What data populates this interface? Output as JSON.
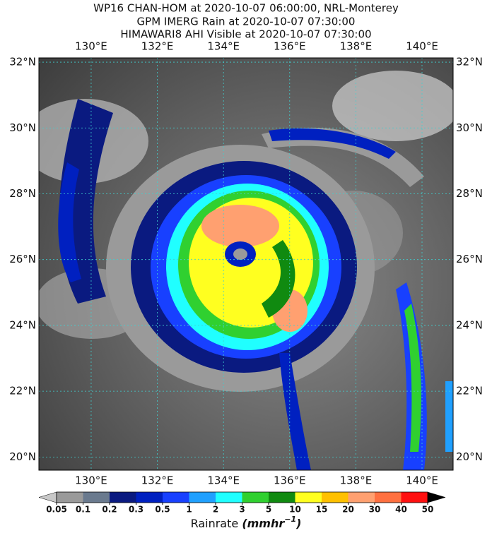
{
  "chart_data": {
    "type": "map",
    "title_lines": [
      "WP16 CHAN-HOM at 2020-10-07 06:00:00, NRL-Monterey",
      "GPM IMERG Rain at 2020-10-07 07:30:00",
      "HIMAWARI8 AHI Visible at 2020-10-07 07:30:00"
    ],
    "xlim": [
      128.42,
      140.94
    ],
    "ylim": [
      19.6,
      32.13
    ],
    "xticks": [
      {
        "value": 130,
        "label": "130°E"
      },
      {
        "value": 132,
        "label": "132°E"
      },
      {
        "value": 134,
        "label": "134°E"
      },
      {
        "value": 136,
        "label": "136°E"
      },
      {
        "value": 138,
        "label": "138°E"
      },
      {
        "value": 140,
        "label": "140°E"
      }
    ],
    "yticks": [
      {
        "value": 20,
        "label": "20°N"
      },
      {
        "value": 22,
        "label": "22°N"
      },
      {
        "value": 24,
        "label": "24°N"
      },
      {
        "value": 26,
        "label": "26°N"
      },
      {
        "value": 28,
        "label": "28°N"
      },
      {
        "value": 30,
        "label": "30°N"
      },
      {
        "value": 32,
        "label": "32°N"
      }
    ],
    "grid": true,
    "colorbar": {
      "levels": [
        0.05,
        0.1,
        0.2,
        0.3,
        0.5,
        1,
        2,
        3,
        5,
        10,
        15,
        20,
        30,
        40,
        50
      ],
      "colors": [
        "#c8c8c8",
        "#9a9a9a",
        "#6a7a8e",
        "#0a1a80",
        "#0020c0",
        "#1840ff",
        "#20a0ff",
        "#20ffff",
        "#30d030",
        "#108a10",
        "#ffff20",
        "#ffc000",
        "#ffa070",
        "#ff7040",
        "#ff1010",
        "#900000",
        "#000000"
      ],
      "label": "Rainrate",
      "unit": "(mmhr",
      "exponent": "−1",
      "unit_close": ")"
    }
  }
}
